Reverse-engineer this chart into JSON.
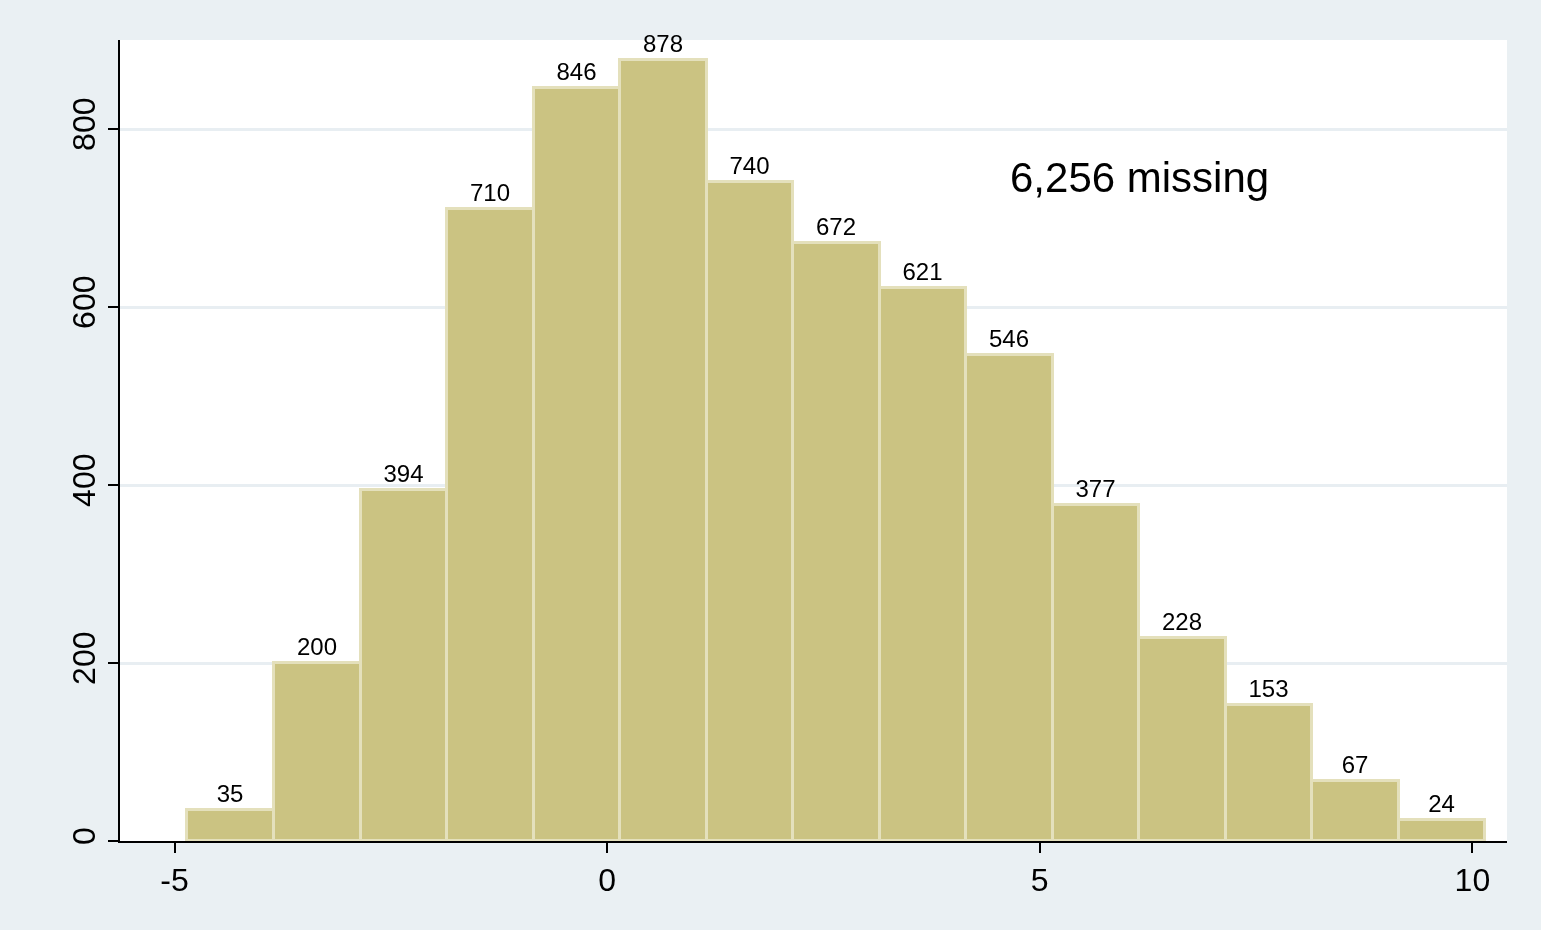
{
  "chart_data": {
    "type": "histogram",
    "bins": [
      -4.85,
      -3.85,
      -2.85,
      -1.85,
      -0.85,
      0.15,
      1.15,
      2.15,
      3.15,
      4.15,
      5.15,
      6.15,
      7.15,
      8.15,
      9.15,
      10.15
    ],
    "values": [
      35,
      200,
      394,
      710,
      846,
      878,
      740,
      672,
      621,
      546,
      377,
      228,
      153,
      67,
      24
    ],
    "color": "#cbc382",
    "xlim": [
      -5.63,
      10.4
    ],
    "xticks": [
      -5,
      0,
      5,
      10
    ],
    "ylim": [
      0,
      900
    ],
    "yticks": [
      0,
      200,
      400,
      600,
      800
    ],
    "grid": "y",
    "data_labels": true,
    "annotations": [
      "6,256 missing"
    ]
  }
}
